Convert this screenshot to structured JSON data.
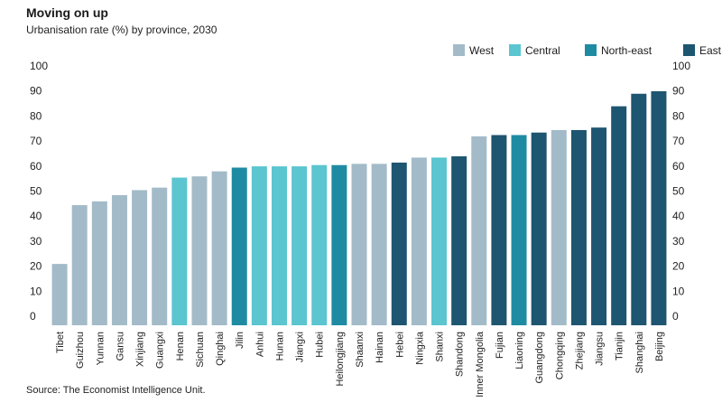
{
  "title": "Moving on up",
  "subtitle": "Urbanisation rate (%) by province, 2030",
  "source": "Source: The Economist Intelligence Unit.",
  "legend": [
    {
      "name": "West",
      "color": "#a3bbc8"
    },
    {
      "name": "Central",
      "color": "#5bc5d0"
    },
    {
      "name": "North-east",
      "color": "#1f8ba3"
    },
    {
      "name": "East",
      "color": "#1e5570"
    }
  ],
  "chart_data": {
    "type": "bar",
    "ylim": [
      0,
      100
    ],
    "yticks": [
      0,
      10,
      20,
      30,
      40,
      50,
      60,
      70,
      80,
      90,
      100
    ],
    "grid": false,
    "legend_position": "top-right",
    "categories": [
      "Tibet",
      "Guizhou",
      "Yunnan",
      "Gansu",
      "Xinjiang",
      "Guangxi",
      "Henan",
      "Sichuan",
      "Qinghai",
      "Jilin",
      "Anhui",
      "Hunan",
      "Jiangxi",
      "Hubei",
      "Heilongjiang",
      "Shaanxi",
      "Hainan",
      "Hebei",
      "Ningxia",
      "Shanxi",
      "Shandong",
      "Inner Mongolia",
      "Fujian",
      "Liaoning",
      "Guangdong",
      "Chongqing",
      "Zhejiang",
      "Jiangsu",
      "Tianjin",
      "Shanghai",
      "Beijing"
    ],
    "values": [
      24.5,
      48,
      49.5,
      52,
      54,
      55,
      59,
      59.5,
      61.5,
      63,
      63.5,
      63.5,
      63.5,
      64,
      64,
      64.5,
      64.5,
      65,
      67,
      67,
      67.5,
      75.5,
      76,
      76,
      77,
      78,
      78,
      79,
      87.5,
      92.5,
      93.5
    ],
    "regions": [
      "West",
      "West",
      "West",
      "West",
      "West",
      "West",
      "Central",
      "West",
      "West",
      "North-east",
      "Central",
      "Central",
      "Central",
      "Central",
      "North-east",
      "West",
      "West",
      "East",
      "West",
      "Central",
      "East",
      "West",
      "East",
      "North-east",
      "East",
      "West",
      "East",
      "East",
      "East",
      "East",
      "East"
    ]
  }
}
